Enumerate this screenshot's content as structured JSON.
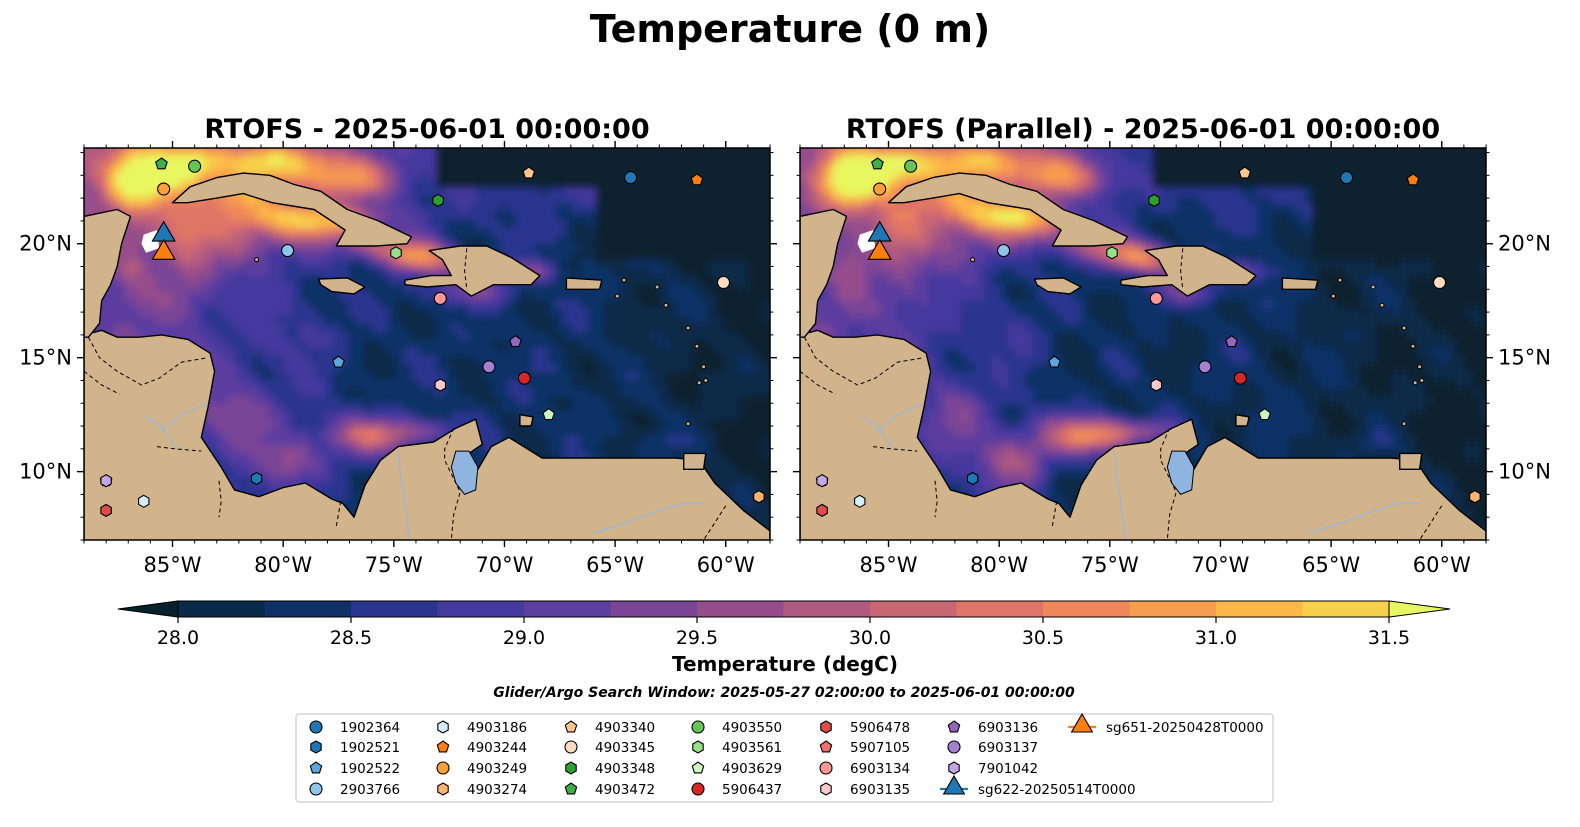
{
  "figure": {
    "title": "Temperature (0 m)",
    "search_window": "Glider/Argo Search Window: 2025-05-27 02:00:00 to 2025-06-01 00:00:00"
  },
  "colorbar": {
    "label": "Temperature (degC)",
    "min": 28.0,
    "max": 31.5,
    "step": 0.25,
    "ticks": [
      "28.0",
      "28.5",
      "29.0",
      "29.5",
      "30.0",
      "30.5",
      "31.0",
      "31.5"
    ],
    "colors": [
      "#0a2a4a",
      "#0f3068",
      "#2a3590",
      "#44399e",
      "#5c3e9f",
      "#7a4596",
      "#964d8b",
      "#b05a80",
      "#c96674",
      "#e07466",
      "#ef875b",
      "#f79d4e",
      "#fbb847",
      "#f7d04c",
      "#f5e85a"
    ],
    "under_color": "#08202e",
    "over_color": "#e8f761"
  },
  "colors": {
    "land": "#d2b48c",
    "deep_ocean": "#072233"
  },
  "chart_data": [
    {
      "type": "heatmap",
      "title": "RTOFS - 2025-06-01 00:00:00",
      "x_ticks": [
        "85°W",
        "80°W",
        "75°W",
        "70°W",
        "65°W",
        "60°W"
      ],
      "y_ticks": [
        "10°N",
        "15°N",
        "20°N"
      ],
      "xlim": [
        -89,
        -58
      ],
      "ylim": [
        7,
        24.2
      ]
    },
    {
      "type": "heatmap",
      "title": "RTOFS (Parallel) - 2025-06-01 00:00:00",
      "x_ticks": [
        "85°W",
        "80°W",
        "75°W",
        "70°W",
        "65°W",
        "60°W"
      ],
      "y_ticks": [
        "10°N",
        "15°N",
        "20°N"
      ],
      "xlim": [
        -89,
        -58
      ],
      "ylim": [
        7,
        24.2
      ]
    }
  ],
  "floats": [
    {
      "id": "1902364",
      "shape": "circle",
      "color": "#1f77b4",
      "lon": -64.3,
      "lat": 22.9
    },
    {
      "id": "1902521",
      "shape": "hexagon",
      "color": "#1f77b4",
      "lon": -81.2,
      "lat": 9.7
    },
    {
      "id": "1902522",
      "shape": "pentagon",
      "color": "#5da5da",
      "lon": -77.5,
      "lat": 14.8
    },
    {
      "id": "2903766",
      "shape": "circle",
      "color": "#8dc6ea",
      "lon": -79.8,
      "lat": 19.7
    },
    {
      "id": "4903186",
      "shape": "hexagon",
      "color": "#d7eef9",
      "lon": -86.3,
      "lat": 8.7
    },
    {
      "id": "4903244",
      "shape": "pentagon",
      "color": "#ff7f0e",
      "lon": -61.3,
      "lat": 22.8
    },
    {
      "id": "4903249",
      "shape": "circle",
      "color": "#ff9f3a",
      "lon": -85.4,
      "lat": 22.4
    },
    {
      "id": "4903274",
      "shape": "hexagon",
      "color": "#ffb26b",
      "lon": -58.5,
      "lat": 8.9
    },
    {
      "id": "4903340",
      "shape": "pentagon",
      "color": "#ffc58d",
      "lon": -68.9,
      "lat": 23.1
    },
    {
      "id": "4903345",
      "shape": "circle",
      "color": "#fddcc0",
      "lon": -60.1,
      "lat": 18.3
    },
    {
      "id": "4903348",
      "shape": "hexagon",
      "color": "#2ca02c",
      "lon": -73.0,
      "lat": 21.9
    },
    {
      "id": "4903472",
      "shape": "pentagon",
      "color": "#3cb043",
      "lon": -85.5,
      "lat": 23.5
    },
    {
      "id": "4903550",
      "shape": "circle",
      "color": "#66c356",
      "lon": -84.0,
      "lat": 23.4
    },
    {
      "id": "4903561",
      "shape": "hexagon",
      "color": "#98df8a",
      "lon": -74.9,
      "lat": 19.6
    },
    {
      "id": "4903629",
      "shape": "pentagon",
      "color": "#ccf5c0",
      "lon": -68.0,
      "lat": 12.5
    },
    {
      "id": "5906437",
      "shape": "circle",
      "color": "#d62728",
      "lon": -69.1,
      "lat": 14.1
    },
    {
      "id": "5906478",
      "shape": "hexagon",
      "color": "#e04b4b",
      "lon": -88.0,
      "lat": 8.3
    },
    {
      "id": "5907105",
      "shape": "pentagon",
      "color": "#f07070",
      "lon": -88.0,
      "lat": 9.6
    },
    {
      "id": "6903134",
      "shape": "circle",
      "color": "#ff9896",
      "lon": -72.9,
      "lat": 17.6
    },
    {
      "id": "6903135",
      "shape": "hexagon",
      "color": "#fcc8cc",
      "lon": -72.9,
      "lat": 13.8
    },
    {
      "id": "6903136",
      "shape": "pentagon",
      "color": "#9467bd",
      "lon": -69.5,
      "lat": 15.7
    },
    {
      "id": "6903137",
      "shape": "circle",
      "color": "#a57fd0",
      "lon": -70.7,
      "lat": 14.6
    },
    {
      "id": "7901042",
      "shape": "hexagon",
      "color": "#c5a6e8",
      "lon": -88.0,
      "lat": 9.6
    },
    {
      "id": "sg622-20250514T0000",
      "shape": "triangle",
      "color": "#1f77b4",
      "lon": -85.4,
      "lat": 20.4
    },
    {
      "id": "sg651-20250428T0000",
      "shape": "triangle",
      "color": "#ff7f0e",
      "lon": -85.4,
      "lat": 19.6
    }
  ]
}
